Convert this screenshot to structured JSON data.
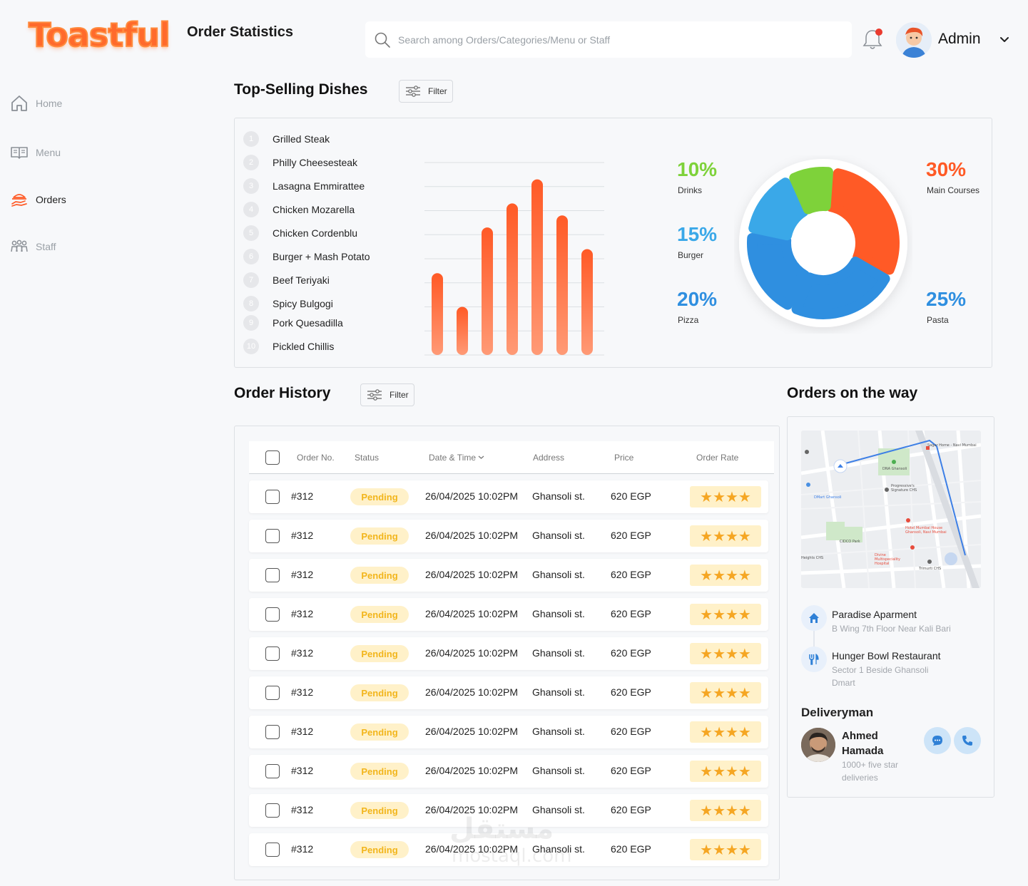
{
  "brand": {
    "logo_text": "Toastful",
    "accent": "#ff6a2b"
  },
  "header": {
    "title": "Order Statistics",
    "search_placeholder": "Search among Orders/Categories/Menu or Staff",
    "user_name": "Admin"
  },
  "nav": {
    "items": [
      {
        "label": "Home",
        "icon": "home-icon"
      },
      {
        "label": "Menu",
        "icon": "book-icon"
      },
      {
        "label": "Orders",
        "icon": "orders-icon",
        "active": true
      },
      {
        "label": "Staff",
        "icon": "staff-icon"
      }
    ]
  },
  "top_selling": {
    "title": "Top-Selling Dishes",
    "filter_label": "Filter",
    "dishes": [
      {
        "rank": "1",
        "name": "Grilled Steak"
      },
      {
        "rank": "2",
        "name": "Philly Cheesesteak"
      },
      {
        "rank": "3",
        "name": "Lasagna Emmirattee"
      },
      {
        "rank": "4",
        "name": "Chicken Mozarella"
      },
      {
        "rank": "5",
        "name": "Chicken Cordenblu"
      },
      {
        "rank": "6",
        "name": "Burger + Mash Potato"
      },
      {
        "rank": "7",
        "name": "Beef Teriyaki"
      },
      {
        "rank": "8",
        "name": "Spicy Bulgogi"
      },
      {
        "rank": "9",
        "name": "Pork Quesadilla"
      },
      {
        "rank": "10",
        "name": "Pickled Chillis"
      }
    ]
  },
  "chart_data": [
    {
      "type": "bar",
      "values": [
        34,
        20,
        53,
        63,
        73,
        58,
        44
      ],
      "ylim": [
        0,
        80
      ],
      "grid": true,
      "color": "#ff5a26"
    },
    {
      "type": "pie",
      "slices": [
        {
          "label": "Main Courses",
          "value": 30,
          "display": "30%",
          "color": "#ff5a26"
        },
        {
          "label": "Pasta",
          "value": 25,
          "display": "25%",
          "color": "#2f8fe0"
        },
        {
          "label": "Pizza",
          "value": 20,
          "display": "20%",
          "color": "#2f8fe0"
        },
        {
          "label": "Burger",
          "value": 15,
          "display": "15%",
          "color": "#3aa8e8"
        },
        {
          "label": "Drinks",
          "value": 10,
          "display": "10%",
          "color": "#7ed23a"
        }
      ]
    }
  ],
  "order_history": {
    "title": "Order History",
    "filter_label": "Filter",
    "columns": {
      "order_no": "Order No.",
      "status": "Status",
      "datetime": "Date & Time",
      "address": "Address",
      "price": "Price",
      "rate": "Order Rate"
    },
    "rows": [
      {
        "order_no": "#312",
        "status": "Pending",
        "datetime": "26/04/2025 10:02PM",
        "address": "Ghansoli st.",
        "price": "620 EGP",
        "stars": "★★★★"
      },
      {
        "order_no": "#312",
        "status": "Pending",
        "datetime": "26/04/2025 10:02PM",
        "address": "Ghansoli st.",
        "price": "620 EGP",
        "stars": "★★★★"
      },
      {
        "order_no": "#312",
        "status": "Pending",
        "datetime": "26/04/2025 10:02PM",
        "address": "Ghansoli st.",
        "price": "620 EGP",
        "stars": "★★★★"
      },
      {
        "order_no": "#312",
        "status": "Pending",
        "datetime": "26/04/2025 10:02PM",
        "address": "Ghansoli st.",
        "price": "620 EGP",
        "stars": "★★★★"
      },
      {
        "order_no": "#312",
        "status": "Pending",
        "datetime": "26/04/2025 10:02PM",
        "address": "Ghansoli st.",
        "price": "620 EGP",
        "stars": "★★★★"
      },
      {
        "order_no": "#312",
        "status": "Pending",
        "datetime": "26/04/2025 10:02PM",
        "address": "Ghansoli st.",
        "price": "620 EGP",
        "stars": "★★★★"
      },
      {
        "order_no": "#312",
        "status": "Pending",
        "datetime": "26/04/2025 10:02PM",
        "address": "Ghansoli st.",
        "price": "620 EGP",
        "stars": "★★★★"
      },
      {
        "order_no": "#312",
        "status": "Pending",
        "datetime": "26/04/2025 10:02PM",
        "address": "Ghansoli st.",
        "price": "620 EGP",
        "stars": "★★★★"
      },
      {
        "order_no": "#312",
        "status": "Pending",
        "datetime": "26/04/2025 10:02PM",
        "address": "Ghansoli st.",
        "price": "620 EGP",
        "stars": "★★★★"
      },
      {
        "order_no": "#312",
        "status": "Pending",
        "datetime": "26/04/2025 10:02PM",
        "address": "Ghansoli st.",
        "price": "620 EGP",
        "stars": "★★★★"
      }
    ]
  },
  "orders_on_way": {
    "title": "Orders on the way",
    "map_labels": [
      "Sagar Home - Navi Mumbai",
      "DNA Ghansoli",
      "Progressive's Signature CHS",
      "DMart Ghansoli",
      "CIDCO Park",
      "Hotel Mumbai House Ghansoli, Navi Mumbai",
      "Divine Multispeciality Hospital",
      "Trimurti CHS",
      "Heights CHS"
    ],
    "destination": {
      "title": "Paradise Aparment",
      "subtitle": "B Wing 7th Floor Near Kali Bari"
    },
    "origin": {
      "title": "Hunger Bowl Restaurant",
      "subtitle": "Sector 1 Beside Ghansoli Dmart"
    },
    "deliveryman": {
      "heading": "Deliveryman",
      "name": "Ahmed Hamada",
      "subtitle": "1000+ five star deliveries"
    }
  },
  "watermark": {
    "text": "مستقل",
    "sub": "mostaql.com"
  }
}
